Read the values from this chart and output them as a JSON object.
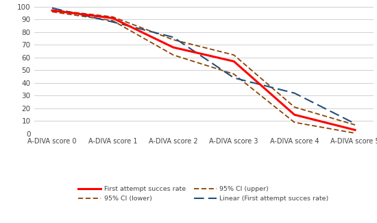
{
  "x_labels": [
    "A-DIVA score 0",
    "A-DIVA score 1",
    "A-DIVA score 2",
    "A-DIVA score 3",
    "A-DIVA score 4",
    "A-DIVA score 5"
  ],
  "x": [
    0,
    1,
    2,
    3,
    4,
    5
  ],
  "first_attempt": [
    97,
    91,
    68,
    57,
    15,
    3
  ],
  "ci_upper": [
    97.5,
    92,
    74,
    62,
    21,
    7
  ],
  "ci_lower": [
    96,
    89,
    62,
    47,
    9,
    0.5
  ],
  "linear": [
    99,
    88,
    76,
    44,
    32,
    8
  ],
  "color_first": "#FF0000",
  "color_ci_upper": "#8B4000",
  "color_ci_lower": "#8B4000",
  "color_linear": "#1F4E79",
  "ylim": [
    0,
    100
  ],
  "yticks": [
    0,
    10,
    20,
    30,
    40,
    50,
    60,
    70,
    80,
    90,
    100
  ],
  "background_color": "#FFFFFF",
  "grid_color": "#D0D0D0",
  "legend_labels": [
    "First attempt succes rate",
    "95% CI (lower)",
    "95% CI (upper)",
    "Linear (First attempt succes rate)"
  ]
}
